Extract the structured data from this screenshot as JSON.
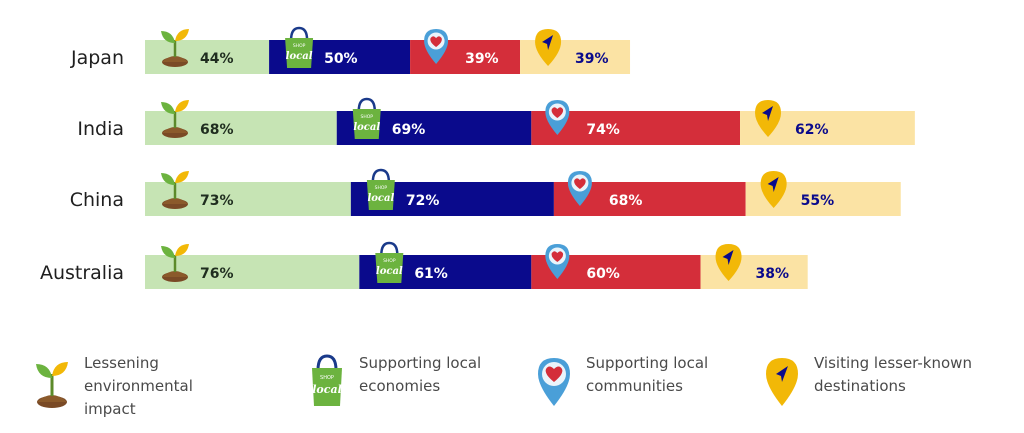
{
  "chart_data": {
    "type": "bar",
    "stacked": true,
    "title": "",
    "categories": [
      "Japan",
      "India",
      "China",
      "Australia"
    ],
    "series": [
      {
        "name": "Lessening environmental impact",
        "values": [
          44,
          68,
          73,
          76
        ],
        "color": "#c6e4b4",
        "icon": "seedling-icon"
      },
      {
        "name": "Supporting local economies",
        "values": [
          50,
          69,
          72,
          61
        ],
        "color": "#0a0a8c",
        "icon": "shopping-bag-icon"
      },
      {
        "name": "Supporting local communities",
        "values": [
          39,
          74,
          68,
          60
        ],
        "color": "#d42e3a",
        "icon": "heart-pin-icon"
      },
      {
        "name": "Visiting lesser-known destinations",
        "values": [
          39,
          62,
          55,
          38
        ],
        "color": "#fbe3a4",
        "icon": "navigation-pin-icon"
      }
    ],
    "labels": [
      [
        "44%",
        "50%",
        "39%",
        "39%"
      ],
      [
        "68%",
        "69%",
        "74%",
        "62%"
      ],
      [
        "73%",
        "72%",
        "68%",
        "55%"
      ],
      [
        "76%",
        "61%",
        "60%",
        "38%"
      ]
    ],
    "xlabel": "",
    "ylabel": "",
    "xlim": [
      0,
      280
    ],
    "legend_position": "bottom"
  },
  "legend": [
    {
      "line1": "Lessening environmental",
      "line2": "impact"
    },
    {
      "line1": "Supporting local",
      "line2": "economies"
    },
    {
      "line1": "Supporting local",
      "line2": "communities"
    },
    {
      "line1": "Visiting lesser-known",
      "line2": "destinations"
    }
  ],
  "colors": {
    "green": "#c6e4b4",
    "navy": "#0a0a8c",
    "red": "#d42e3a",
    "yellow": "#fbe3a4",
    "gold": "#f2b807"
  }
}
